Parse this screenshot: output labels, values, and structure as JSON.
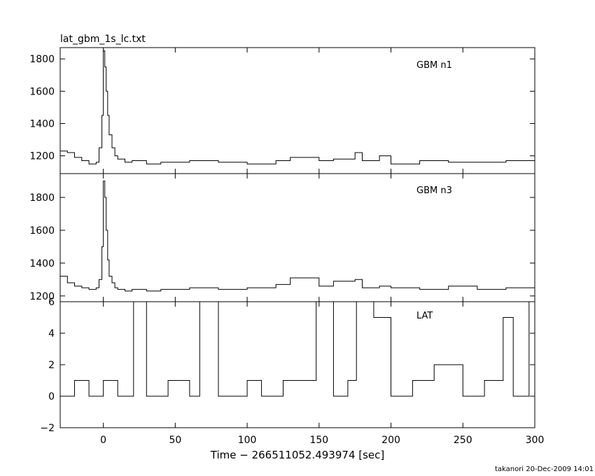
{
  "chart_data": {
    "type": "line",
    "title": "lat_gbm_1s_lc.txt",
    "xlabel": "Time − 266511052.493974 [sec]",
    "footer": "takanori 20-Dec-2009 14:01",
    "xlim": [
      -30,
      300
    ],
    "x_ticks": [
      "0",
      "50",
      "100",
      "150",
      "200",
      "250",
      "300"
    ],
    "x_tick_values": [
      0,
      50,
      100,
      150,
      200,
      250,
      300
    ],
    "line_color": "#000000",
    "panels": [
      {
        "label": "GBM n1",
        "ylim": [
          1090,
          1870
        ],
        "y_ticks": [
          "1200",
          "1400",
          "1600",
          "1800"
        ],
        "y_tick_values": [
          1200,
          1400,
          1600,
          1800
        ],
        "series": {
          "x": [
            -30,
            -25,
            -20,
            -15,
            -10,
            -5,
            -3,
            -1,
            0,
            1,
            2,
            3,
            4,
            6,
            8,
            10,
            15,
            20,
            30,
            40,
            60,
            80,
            100,
            120,
            130,
            150,
            160,
            175,
            180,
            192,
            200,
            220,
            240,
            260,
            280,
            300
          ],
          "y": [
            1230,
            1220,
            1190,
            1170,
            1150,
            1160,
            1250,
            1450,
            1850,
            1750,
            1600,
            1450,
            1330,
            1250,
            1200,
            1180,
            1160,
            1170,
            1150,
            1160,
            1170,
            1160,
            1150,
            1170,
            1190,
            1170,
            1180,
            1220,
            1170,
            1200,
            1150,
            1170,
            1160,
            1160,
            1170,
            1170
          ]
        }
      },
      {
        "label": "GBM n3",
        "ylim": [
          1165,
          1945
        ],
        "y_ticks": [
          "1200",
          "1400",
          "1600",
          "1800"
        ],
        "y_tick_values": [
          1200,
          1400,
          1600,
          1800
        ],
        "series": {
          "x": [
            -30,
            -25,
            -20,
            -15,
            -10,
            -5,
            -3,
            -1,
            0,
            1,
            2,
            3,
            4,
            6,
            8,
            10,
            15,
            20,
            30,
            40,
            60,
            80,
            100,
            120,
            130,
            150,
            160,
            175,
            180,
            192,
            200,
            220,
            240,
            260,
            280,
            300
          ],
          "y": [
            1320,
            1280,
            1260,
            1250,
            1240,
            1250,
            1300,
            1500,
            1900,
            1800,
            1600,
            1420,
            1320,
            1280,
            1250,
            1240,
            1230,
            1240,
            1230,
            1240,
            1250,
            1240,
            1250,
            1270,
            1310,
            1260,
            1290,
            1300,
            1250,
            1260,
            1250,
            1240,
            1260,
            1240,
            1250,
            1250
          ]
        }
      },
      {
        "label": "LAT",
        "ylim": [
          -2,
          6
        ],
        "y_ticks": [
          "−2",
          "0",
          "2",
          "4",
          "6"
        ],
        "y_tick_values": [
          -2,
          0,
          2,
          4,
          6
        ],
        "series": {
          "x": [
            -30,
            -20,
            -10,
            0,
            10,
            21,
            30,
            45,
            60,
            67,
            80,
            100,
            110,
            125,
            148,
            160,
            170,
            176,
            188,
            200,
            215,
            230,
            250,
            265,
            278,
            285,
            296,
            300
          ],
          "y": [
            0,
            1,
            0,
            1,
            0,
            6,
            0,
            1,
            0,
            6,
            0,
            1,
            0,
            1,
            6,
            0,
            1,
            6,
            5,
            0,
            1,
            2,
            0,
            1,
            5,
            0,
            6,
            0
          ]
        }
      }
    ]
  }
}
